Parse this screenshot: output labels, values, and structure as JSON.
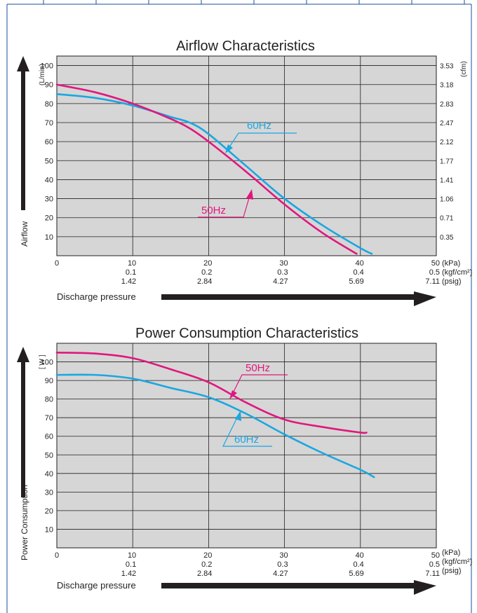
{
  "chart_data": [
    {
      "type": "line",
      "title": "Airflow Characteristics",
      "ylabel": "Airflow",
      "y_unit_left": "(L/min)",
      "y_unit_right": "(cfm)",
      "xlabel": "Discharge pressure",
      "x_units": [
        "(kPa)",
        "(kgf/cm²)",
        "(psig)"
      ],
      "xlim": [
        0,
        50
      ],
      "ylim": [
        0,
        105
      ],
      "x_ticks": [
        0,
        10,
        20,
        30,
        40,
        50
      ],
      "y_ticks": [
        10,
        20,
        30,
        40,
        50,
        60,
        70,
        80,
        90,
        100
      ],
      "x_tick_labels_kgf": [
        "0.1",
        "0.2",
        "0.3",
        "0.4",
        "0.5"
      ],
      "x_tick_labels_psig": [
        "1.42",
        "2.84",
        "4.27",
        "5.69",
        "7.11"
      ],
      "y_right_tick_labels": [
        "0.35",
        "0.71",
        "1.06",
        "1.41",
        "1.77",
        "2.12",
        "2.47",
        "2.83",
        "3.18",
        "3.53"
      ],
      "grid": true,
      "series": [
        {
          "name": "60Hz",
          "color": "#1aa7e0",
          "x": [
            0,
            5,
            10,
            15,
            17.5,
            20,
            25,
            30,
            35,
            40,
            41.5
          ],
          "y": [
            85,
            83,
            79,
            73,
            70,
            64,
            47,
            30,
            16,
            4,
            1
          ]
        },
        {
          "name": "50Hz",
          "color": "#e0177d",
          "x": [
            0,
            5,
            10,
            15,
            17.5,
            20,
            25,
            30,
            35,
            39.5
          ],
          "y": [
            90,
            86,
            80,
            72,
            67,
            60,
            44,
            27,
            12,
            1
          ]
        }
      ]
    },
    {
      "type": "line",
      "title": "Power Consumption Characteristics",
      "ylabel": "Power Consumption",
      "y_unit_left": "[ W ]",
      "xlabel": "Discharge pressure",
      "x_units": [
        "(kPa)",
        "(kgf/cm²)",
        "(psig)"
      ],
      "xlim": [
        0,
        50
      ],
      "ylim": [
        0,
        110
      ],
      "x_ticks": [
        0,
        10,
        20,
        30,
        40,
        50
      ],
      "y_ticks": [
        10,
        20,
        30,
        40,
        50,
        60,
        70,
        80,
        90,
        100
      ],
      "x_tick_labels_kgf": [
        "0.1",
        "0.2",
        "0.3",
        "0.4",
        "0.5"
      ],
      "x_tick_labels_psig": [
        "1.42",
        "2.84",
        "4.27",
        "5.69",
        "7.11"
      ],
      "grid": true,
      "series": [
        {
          "name": "50Hz",
          "color": "#e0177d",
          "x": [
            0,
            5,
            10,
            15,
            20,
            25,
            30,
            35,
            40,
            40.8
          ],
          "y": [
            105,
            104.5,
            102,
            96,
            89,
            78,
            69,
            65,
            62,
            62
          ]
        },
        {
          "name": "60Hz",
          "color": "#1aa7e0",
          "x": [
            0,
            5,
            10,
            15,
            20,
            25,
            30,
            35,
            40,
            41.8
          ],
          "y": [
            93,
            93,
            91,
            86,
            81,
            72,
            61,
            51,
            42,
            38
          ]
        }
      ]
    }
  ]
}
